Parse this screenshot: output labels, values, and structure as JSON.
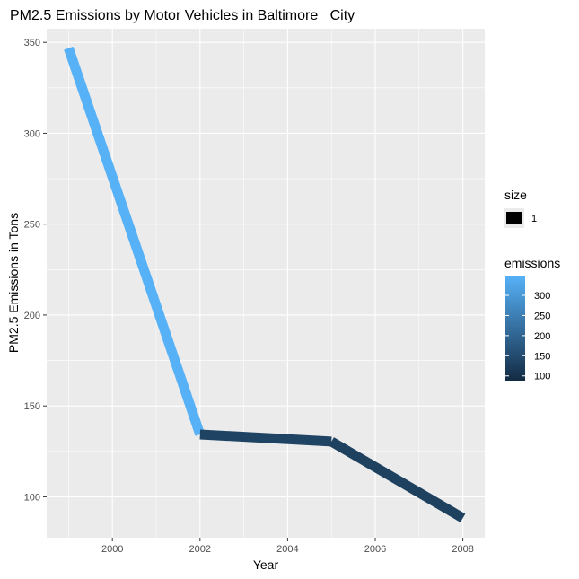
{
  "chart_data": {
    "type": "line",
    "title": "PM2.5 Emissions by Motor Vehicles in Baltimore_ City",
    "xlabel": "Year",
    "ylabel": "PM2.5 Emissions in Tons",
    "x": [
      1999,
      2002,
      2005,
      2008
    ],
    "series": [
      {
        "values": [
          346.8,
          134.3,
          130.4,
          88.3
        ]
      }
    ],
    "xlim": [
      1998.5,
      2008.5
    ],
    "ylim": [
      77.5,
      357.5
    ],
    "x_ticks": [
      2000,
      2002,
      2004,
      2006,
      2008
    ],
    "x_tick_labels": [
      "2000",
      "2002",
      "2004",
      "2006",
      "2008"
    ],
    "y_ticks": [
      100,
      150,
      200,
      250,
      300,
      350
    ],
    "y_tick_labels": [
      "100",
      "150",
      "200",
      "250",
      "300",
      "350"
    ],
    "grid": true,
    "panel_background": "#ebebeb",
    "color_scale": {
      "low": "#132b43",
      "high": "#56b1f7",
      "min": 88.3,
      "max": 346.8
    },
    "legend": {
      "position": "right",
      "size_title": "size",
      "size_label": "1",
      "color_title": "emissions",
      "color_ticks": [
        100,
        150,
        200,
        250,
        300
      ],
      "color_tick_labels": [
        "100",
        "150",
        "200",
        "250",
        "300"
      ]
    }
  }
}
